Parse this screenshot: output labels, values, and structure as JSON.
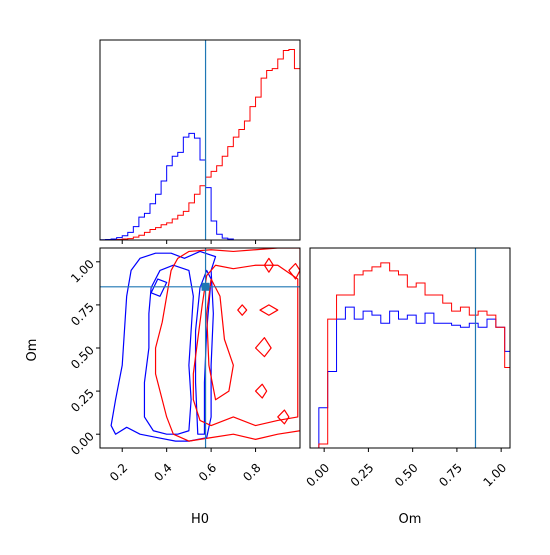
{
  "chart_data": {
    "type": "corner",
    "parameters": [
      "H0",
      "Om"
    ],
    "truth": {
      "H0": 0.575,
      "Om": 0.855
    },
    "colors": {
      "series_a": "#0000ff",
      "series_b": "#ff0000",
      "truth": "#1f77b4"
    },
    "panels": {
      "h0_hist": {
        "type": "step-histogram",
        "xlim": [
          0.1,
          1.0
        ],
        "bin_width": 0.025,
        "bin_start": 0.1,
        "series": [
          {
            "color": "blue",
            "values": [
              0.2,
              0.5,
              1.0,
              2.5,
              4.5,
              8,
              14,
              24,
              28,
              38,
              48,
              62,
              78,
              88,
              92,
              108,
              112,
              107,
              84,
              55,
              20,
              6,
              2,
              1
            ]
          },
          {
            "color": "red",
            "values": [
              0,
              0,
              0,
              0.5,
              1,
              1.5,
              3,
              5,
              8,
              11,
              13,
              16,
              18,
              22,
              26,
              30,
              39,
              48,
              57,
              66,
              72,
              78,
              88,
              98,
              108,
              116,
              125,
              140,
              150,
              170,
              178,
              180,
              190,
              199,
              200,
              180
            ]
          }
        ]
      },
      "om_hist": {
        "type": "step-histogram",
        "xlim": [
          -0.08,
          1.05
        ],
        "bin_width": 0.05,
        "bin_start": -0.08,
        "series": [
          {
            "color": "blue",
            "values": [
              0,
              1,
              1.9,
              3.2,
              3.5,
              3.2,
              3.4,
              3.3,
              3.1,
              3.4,
              3.2,
              3.3,
              3.1,
              3.35,
              3.1,
              3.1,
              3.05,
              3.0,
              3.1,
              3.0,
              3.2,
              3.0,
              2.4,
              1.2,
              0.9
            ]
          },
          {
            "color": "red",
            "values": [
              0,
              0.1,
              3.2,
              3.8,
              3.8,
              4.3,
              4.4,
              4.5,
              4.6,
              4.4,
              4.3,
              4.0,
              4.1,
              3.8,
              3.8,
              3.6,
              3.4,
              3.5,
              3.3,
              3.4,
              3.3,
              3.0,
              2.0,
              0,
              0
            ]
          }
        ]
      },
      "contour": {
        "xlim": [
          0.1,
          1.0
        ],
        "ylim": [
          -0.08,
          1.08
        ],
        "xticks": [
          "0.2",
          "0.4",
          "0.6",
          "0.8"
        ],
        "yticks": [
          "0.00",
          "0.25",
          "0.50",
          "0.75",
          "1.00"
        ],
        "xlabel": "H0",
        "ylabel": "Om",
        "contours": [
          {
            "color": "blue",
            "points": [
              [
                0.17,
                0.0
              ],
              [
                0.22,
                0.04
              ],
              [
                0.28,
                0.0
              ],
              [
                0.36,
                -0.02
              ],
              [
                0.44,
                -0.04
              ],
              [
                0.5,
                -0.04
              ],
              [
                0.58,
                -0.02
              ],
              [
                0.6,
                0.1
              ],
              [
                0.6,
                0.4
              ],
              [
                0.61,
                0.7
              ],
              [
                0.6,
                0.95
              ],
              [
                0.62,
                1.03
              ],
              [
                0.55,
                1.06
              ],
              [
                0.48,
                1.02
              ],
              [
                0.42,
                1.05
              ],
              [
                0.35,
                1.05
              ],
              [
                0.28,
                1.02
              ],
              [
                0.24,
                0.95
              ],
              [
                0.22,
                0.8
              ],
              [
                0.21,
                0.6
              ],
              [
                0.2,
                0.4
              ],
              [
                0.17,
                0.2
              ],
              [
                0.15,
                0.05
              ]
            ]
          },
          {
            "color": "blue",
            "points": [
              [
                0.3,
                0.1
              ],
              [
                0.34,
                0.02
              ],
              [
                0.4,
                0.0
              ],
              [
                0.45,
                0.0
              ],
              [
                0.5,
                0.02
              ],
              [
                0.51,
                0.2
              ],
              [
                0.5,
                0.4
              ],
              [
                0.51,
                0.6
              ],
              [
                0.52,
                0.8
              ],
              [
                0.5,
                0.95
              ],
              [
                0.43,
                0.98
              ],
              [
                0.37,
                0.95
              ],
              [
                0.33,
                0.85
              ],
              [
                0.32,
                0.7
              ],
              [
                0.32,
                0.5
              ],
              [
                0.3,
                0.3
              ]
            ]
          },
          {
            "color": "blue",
            "points": [
              [
                0.54,
                0.0
              ],
              [
                0.57,
                0.0
              ],
              [
                0.57,
                0.3
              ],
              [
                0.58,
                0.6
              ],
              [
                0.6,
                0.9
              ],
              [
                0.58,
                0.95
              ],
              [
                0.55,
                0.85
              ],
              [
                0.53,
                0.6
              ],
              [
                0.53,
                0.3
              ]
            ]
          },
          {
            "color": "blue",
            "points": [
              [
                0.33,
                0.82
              ],
              [
                0.36,
                0.9
              ],
              [
                0.4,
                0.88
              ],
              [
                0.37,
                0.8
              ]
            ]
          },
          {
            "color": "red",
            "points": [
              [
                0.43,
                0.0
              ],
              [
                0.5,
                -0.04
              ],
              [
                0.6,
                -0.02
              ],
              [
                0.7,
                0.0
              ],
              [
                0.8,
                -0.03
              ],
              [
                0.9,
                0.0
              ],
              [
                1.0,
                0.02
              ],
              [
                1.0,
                1.08
              ],
              [
                0.9,
                1.08
              ],
              [
                0.8,
                1.07
              ],
              [
                0.7,
                1.06
              ],
              [
                0.6,
                1.07
              ],
              [
                0.5,
                1.06
              ],
              [
                0.45,
                1.02
              ],
              [
                0.42,
                0.95
              ],
              [
                0.4,
                0.8
              ],
              [
                0.38,
                0.65
              ],
              [
                0.35,
                0.5
              ],
              [
                0.35,
                0.35
              ],
              [
                0.38,
                0.2
              ],
              [
                0.4,
                0.1
              ]
            ]
          },
          {
            "color": "red",
            "points": [
              [
                0.55,
                0.08
              ],
              [
                0.6,
                0.05
              ],
              [
                0.7,
                0.1
              ],
              [
                0.8,
                0.05
              ],
              [
                0.9,
                0.08
              ],
              [
                0.99,
                0.1
              ],
              [
                0.99,
                0.9
              ],
              [
                0.9,
                0.98
              ],
              [
                0.8,
                0.98
              ],
              [
                0.7,
                0.96
              ],
              [
                0.62,
                0.98
              ],
              [
                0.58,
                0.92
              ],
              [
                0.56,
                0.75
              ],
              [
                0.54,
                0.55
              ],
              [
                0.52,
                0.35
              ],
              [
                0.52,
                0.2
              ]
            ]
          },
          {
            "color": "red",
            "points": [
              [
                0.62,
                0.2
              ],
              [
                0.68,
                0.25
              ],
              [
                0.7,
                0.4
              ],
              [
                0.66,
                0.55
              ],
              [
                0.64,
                0.8
              ],
              [
                0.6,
                0.9
              ],
              [
                0.58,
                0.7
              ],
              [
                0.59,
                0.4
              ]
            ]
          },
          {
            "color": "red",
            "points": [
              [
                0.8,
                0.5
              ],
              [
                0.84,
                0.56
              ],
              [
                0.87,
                0.5
              ],
              [
                0.84,
                0.45
              ]
            ]
          },
          {
            "color": "red",
            "points": [
              [
                0.82,
                0.72
              ],
              [
                0.86,
                0.75
              ],
              [
                0.9,
                0.72
              ],
              [
                0.86,
                0.69
              ]
            ]
          },
          {
            "color": "red",
            "points": [
              [
                0.84,
                0.98
              ],
              [
                0.86,
                1.02
              ],
              [
                0.88,
                0.98
              ],
              [
                0.86,
                0.94
              ]
            ]
          },
          {
            "color": "red",
            "points": [
              [
                0.95,
                0.95
              ],
              [
                0.98,
                0.99
              ],
              [
                1.0,
                0.95
              ],
              [
                0.98,
                0.9
              ]
            ]
          },
          {
            "color": "red",
            "points": [
              [
                0.9,
                0.1
              ],
              [
                0.93,
                0.14
              ],
              [
                0.95,
                0.1
              ],
              [
                0.93,
                0.06
              ]
            ]
          },
          {
            "color": "red",
            "points": [
              [
                0.8,
                0.25
              ],
              [
                0.83,
                0.29
              ],
              [
                0.85,
                0.25
              ],
              [
                0.83,
                0.21
              ]
            ]
          },
          {
            "color": "red",
            "points": [
              [
                0.72,
                0.72
              ],
              [
                0.74,
                0.75
              ],
              [
                0.76,
                0.72
              ],
              [
                0.74,
                0.69
              ]
            ]
          }
        ]
      }
    }
  }
}
